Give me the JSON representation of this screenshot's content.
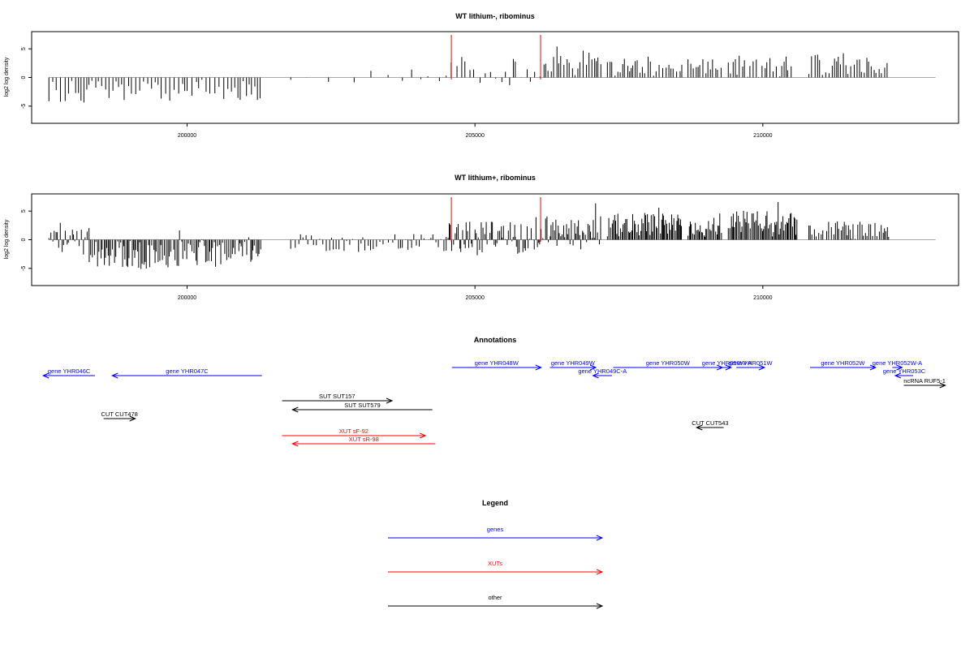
{
  "chart_data": [
    {
      "type": "bar",
      "title": "WT lithium-, ribominus",
      "ylabel": "log2 log density",
      "xlabel": "",
      "xlim": [
        197300,
        213400
      ],
      "ylim": [
        -8,
        8
      ],
      "xticks": [
        "200000",
        "205000",
        "210000"
      ],
      "yticks": [
        "-5",
        "0",
        "5"
      ],
      "markers": [
        204590,
        206140
      ],
      "grid": false,
      "segments": [
        {
          "x0": 197600,
          "x1": 200200,
          "step": 60,
          "mean": -2.4,
          "amp": 2.0
        },
        {
          "x0": 200200,
          "x1": 201300,
          "step": 65,
          "mean": -2.3,
          "amp": 2.0
        },
        {
          "x0": 201800,
          "x1": 203900,
          "step": 320,
          "mean": 0.2,
          "amp": 1.3
        },
        {
          "x0": 203900,
          "x1": 204500,
          "step": 170,
          "mean": 0.1,
          "amp": 1.8
        },
        {
          "x0": 204500,
          "x1": 205700,
          "step": 85,
          "mean": 0.9,
          "amp": 2.6
        },
        {
          "x0": 205700,
          "x1": 206200,
          "step": 80,
          "mean": 0.9,
          "amp": 2.4
        },
        {
          "x0": 206200,
          "x1": 207200,
          "step": 45,
          "mean": 2.6,
          "amp": 2.4
        },
        {
          "x0": 207300,
          "x1": 208600,
          "step": 45,
          "mean": 1.8,
          "amp": 1.6
        },
        {
          "x0": 208700,
          "x1": 209300,
          "step": 45,
          "mean": 1.8,
          "amp": 1.4
        },
        {
          "x0": 209400,
          "x1": 210500,
          "step": 45,
          "mean": 2.0,
          "amp": 2.0
        },
        {
          "x0": 210800,
          "x1": 212200,
          "step": 45,
          "mean": 2.4,
          "amp": 2.2
        }
      ]
    },
    {
      "type": "bar",
      "title": "WT lithium+, ribominus",
      "ylabel": "log2 log density",
      "xlabel": "",
      "xlim": [
        197300,
        213400
      ],
      "ylim": [
        -8,
        8
      ],
      "xticks": [
        "200000",
        "205000",
        "210000"
      ],
      "yticks": [
        "-5",
        "0",
        "5"
      ],
      "markers": [
        204590,
        206140
      ],
      "grid": false,
      "segments": [
        {
          "x0": 197600,
          "x1": 198300,
          "step": 30,
          "mean": 0.0,
          "amp": 3.0
        },
        {
          "x0": 198300,
          "x1": 200200,
          "step": 28,
          "mean": -2.5,
          "amp": 2.6
        },
        {
          "x0": 200200,
          "x1": 201300,
          "step": 28,
          "mean": -2.4,
          "amp": 2.5
        },
        {
          "x0": 201800,
          "x1": 203900,
          "step": 45,
          "mean": -0.8,
          "amp": 1.8
        },
        {
          "x0": 203900,
          "x1": 204500,
          "step": 40,
          "mean": -0.5,
          "amp": 2.0
        },
        {
          "x0": 204500,
          "x1": 205700,
          "step": 24,
          "mean": 0.2,
          "amp": 3.0
        },
        {
          "x0": 205700,
          "x1": 206200,
          "step": 24,
          "mean": 0.3,
          "amp": 2.8
        },
        {
          "x0": 206200,
          "x1": 207200,
          "step": 24,
          "mean": 1.6,
          "amp": 2.6
        },
        {
          "x0": 207300,
          "x1": 208600,
          "step": 22,
          "mean": 2.6,
          "amp": 2.2
        },
        {
          "x0": 208700,
          "x1": 209300,
          "step": 22,
          "mean": 2.3,
          "amp": 1.8
        },
        {
          "x0": 209400,
          "x1": 210600,
          "step": 22,
          "mean": 2.8,
          "amp": 2.3
        },
        {
          "x0": 210800,
          "x1": 212200,
          "step": 35,
          "mean": 1.6,
          "amp": 1.6
        }
      ]
    }
  ],
  "annotations": {
    "title": "Annotations",
    "features": [
      {
        "label": "gene YHR046C",
        "start": 197500,
        "end": 198400,
        "strand": "-",
        "color": "#0000ff",
        "row": 0
      },
      {
        "label": "gene YHR047C",
        "start": 198700,
        "end": 201300,
        "strand": "-",
        "color": "#0000ff",
        "row": 0
      },
      {
        "label": "gene YHR048W",
        "start": 204600,
        "end": 206150,
        "strand": "+",
        "color": "#0000ff",
        "row": -1
      },
      {
        "label": "gene YHR049W",
        "start": 206300,
        "end": 207100,
        "strand": "+",
        "color": "#0000ff",
        "row": -1
      },
      {
        "label": "gene YHR049C-A",
        "start": 207050,
        "end": 207380,
        "strand": "-",
        "color": "#0000ff",
        "row": 0
      },
      {
        "label": "gene YHR050W",
        "start": 207400,
        "end": 209300,
        "strand": "+",
        "color": "#0000ff",
        "row": -1
      },
      {
        "label": "gene YHR050W-A",
        "start": 209300,
        "end": 209450,
        "strand": "+",
        "color": "#0000ff",
        "row": -1
      },
      {
        "label": "gene YHR051W",
        "start": 209540,
        "end": 210030,
        "strand": "+",
        "color": "#0000ff",
        "row": -1
      },
      {
        "label": "gene YHR052W",
        "start": 210820,
        "end": 211960,
        "strand": "+",
        "color": "#0000ff",
        "row": -1
      },
      {
        "label": "gene YHR052W-A",
        "start": 212250,
        "end": 212420,
        "strand": "+",
        "color": "#0000ff",
        "row": -1
      },
      {
        "label": "gene YHR053C",
        "start": 212300,
        "end": 212610,
        "strand": "-",
        "color": "#0000ff",
        "row": 0
      },
      {
        "label": "ncRNA RUF5-1",
        "start": 212450,
        "end": 213170,
        "strand": "+",
        "color": "#000000",
        "row": 1
      },
      {
        "label": "SUT SUT157",
        "start": 201650,
        "end": 203560,
        "strand": "+",
        "color": "#000000",
        "row": 2
      },
      {
        "label": "SUT SUT579",
        "start": 201830,
        "end": 204260,
        "strand": "-",
        "color": "#000000",
        "row": 3
      },
      {
        "label": "CUT CUT478",
        "start": 198550,
        "end": 199100,
        "strand": "+",
        "color": "#000000",
        "row": 4
      },
      {
        "label": "CUT CUT543",
        "start": 208850,
        "end": 209320,
        "strand": "-",
        "color": "#000000",
        "row": 5
      },
      {
        "label": "XUT sF-92",
        "start": 201650,
        "end": 204140,
        "strand": "+",
        "color": "#ff0000",
        "row": 6
      },
      {
        "label": "XUT sR-98",
        "start": 201830,
        "end": 204310,
        "strand": "-",
        "color": "#ff0000",
        "row": 7
      }
    ]
  },
  "legend": {
    "title": "Legend",
    "items": [
      {
        "label": "genes",
        "color": "#0000ff"
      },
      {
        "label": "XUTs",
        "color": "#ff0000"
      },
      {
        "label": "other",
        "color": "#000000"
      }
    ]
  }
}
